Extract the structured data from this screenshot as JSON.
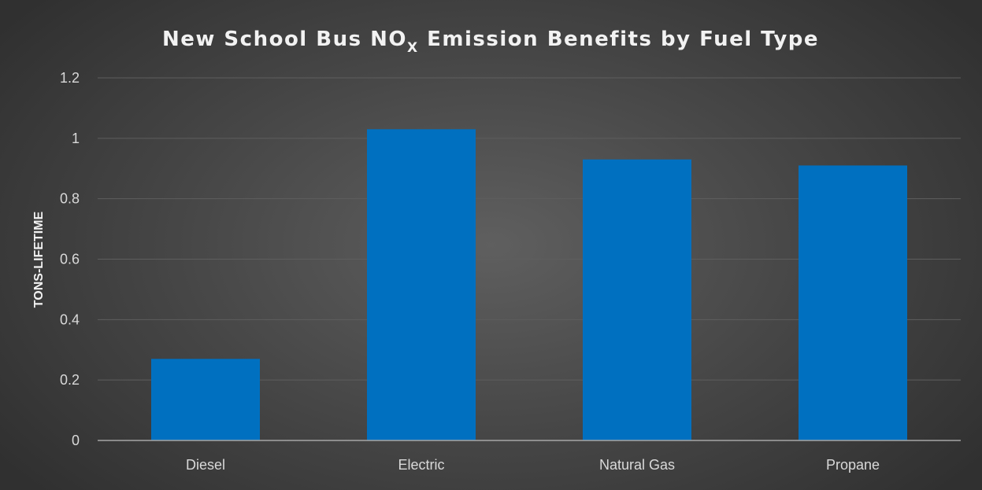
{
  "chart_data": {
    "type": "bar",
    "title": {
      "prefix": "New School Bus NO",
      "subscript": "X",
      "suffix": " Emission Benefits by Fuel Type"
    },
    "ylabel": "TONS-LIFETIME",
    "xlabel": "",
    "categories": [
      "Diesel",
      "Electric",
      "Natural Gas",
      "Propane"
    ],
    "values": [
      0.27,
      1.03,
      0.93,
      0.91
    ],
    "ylim": [
      0,
      1.2
    ],
    "yticks": [
      "0",
      "0.2",
      "0.4",
      "0.6",
      "0.8",
      "1",
      "1.2"
    ],
    "grid": true,
    "legend": "none",
    "colors": {
      "bar": "#0070c0",
      "gridline": "#5e5e5e",
      "axis": "#a6a6a6"
    }
  }
}
